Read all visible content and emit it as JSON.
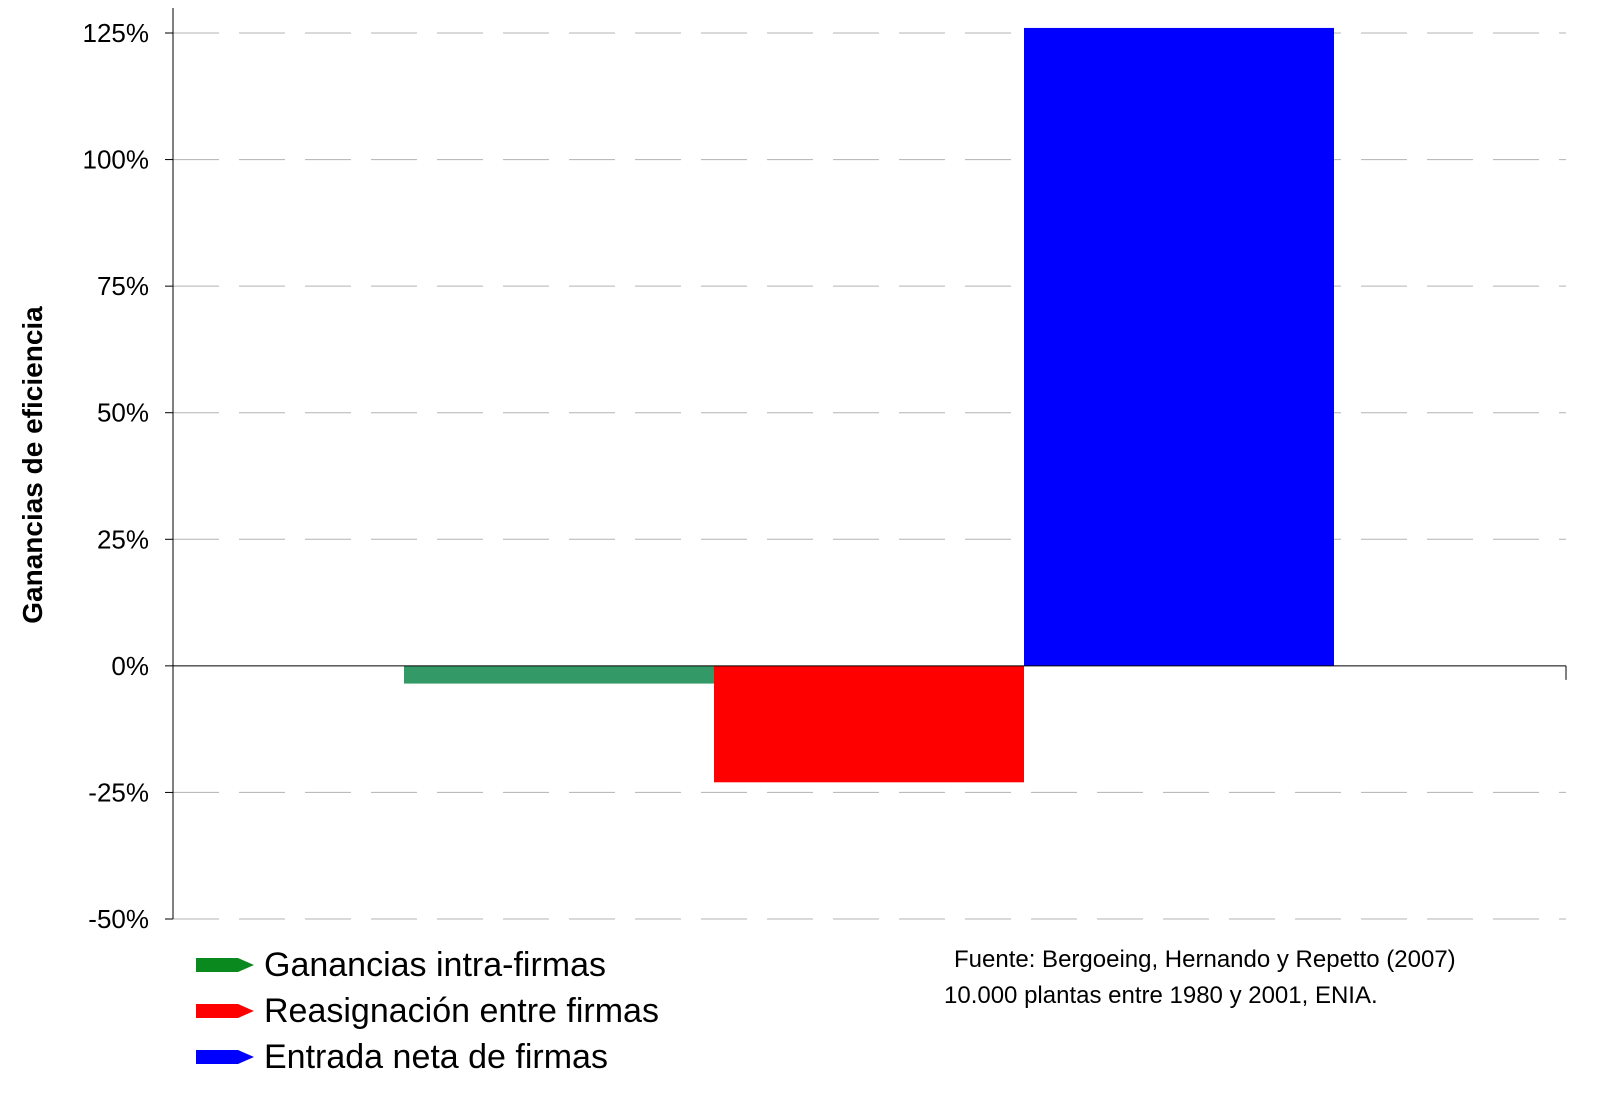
{
  "chart_data": {
    "type": "bar",
    "categories": [
      "Ganancias intra-firmas",
      "Reasignación entre firmas",
      "Entrada neta de firmas"
    ],
    "series": [
      {
        "name": "Ganancias intra-firmas",
        "category": "Ganancias intra-firmas",
        "value": -3.5,
        "color": "#339966"
      },
      {
        "name": "Reasignación entre firmas",
        "category": "Reasignación entre firmas",
        "value": -23,
        "color": "#ff0000"
      },
      {
        "name": "Entrada neta de firmas",
        "category": "Entrada neta de firmas",
        "value": 126,
        "color": "#0000ff"
      }
    ],
    "ylabel": "Ganancias de eficiencia",
    "ylim": [
      -50,
      125
    ],
    "yticks": [
      125,
      100,
      75,
      50,
      25,
      0,
      -25,
      -50
    ],
    "ytick_labels": [
      "125%",
      "100%",
      "75%",
      "50%",
      "25%",
      "0%",
      "-25%",
      "-50%"
    ],
    "grid": true,
    "legend": {
      "placement": "bottom-left",
      "entries": [
        {
          "label": "Ganancias intra-firmas",
          "color": "#0a8a1e"
        },
        {
          "label": "Reasignación entre firmas",
          "color": "#ff0000"
        },
        {
          "label": "Entrada neta de firmas",
          "color": "#0000ff"
        }
      ]
    },
    "annotations": [
      "Fuente: Bergoeing, Hernando  y Repetto (2007)",
      "10.000 plantas entre 1980 y 2001, ENIA."
    ]
  }
}
